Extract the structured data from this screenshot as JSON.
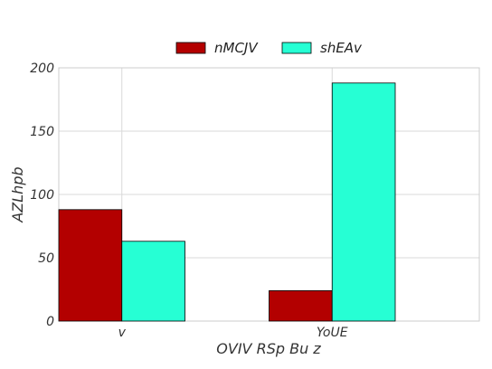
{
  "chart_data": {
    "type": "bar",
    "title": "",
    "xlabel": "OVIV RSp Bu z",
    "ylabel": "AZLhpb",
    "categories": [
      "v",
      "YoUE"
    ],
    "series": [
      {
        "name": "nMCJV",
        "values": [
          88,
          24
        ],
        "color": "#b30000"
      },
      {
        "name": "shEAv",
        "values": [
          63,
          188
        ],
        "color": "#26ffd4"
      }
    ],
    "ylim": [
      0,
      200
    ],
    "yticks": [
      0,
      50,
      100,
      150,
      200
    ],
    "grid": true,
    "legend_position": "top-center"
  }
}
